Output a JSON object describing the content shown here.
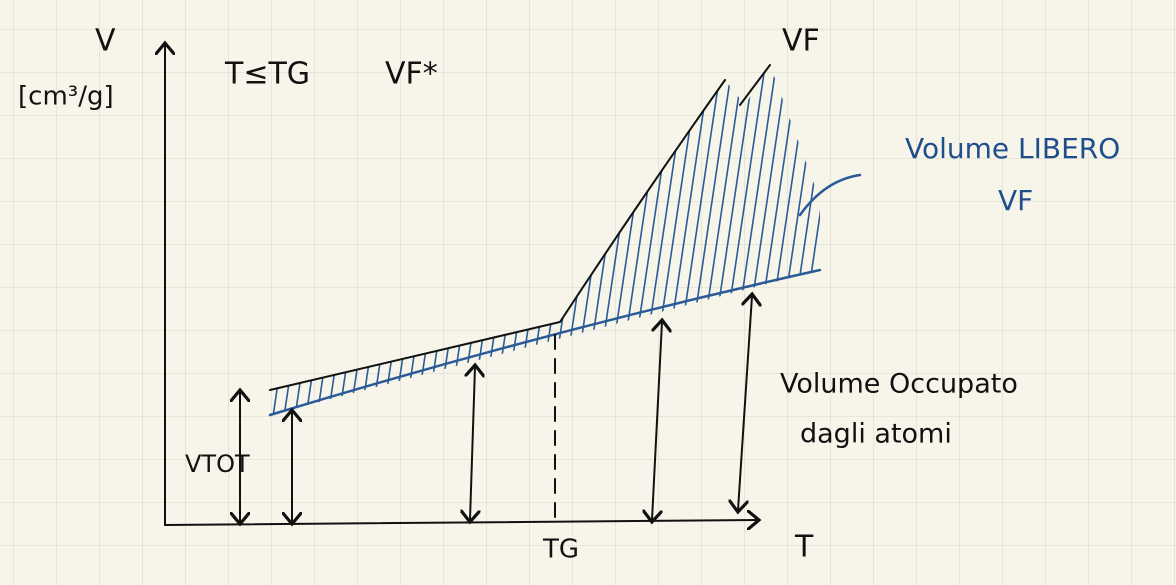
{
  "axes": {
    "y_label": "V",
    "y_unit": "[cm³/g]",
    "x_label": "T",
    "x_mark": "TG"
  },
  "labels": {
    "condition": "T≤TG",
    "free_volume_star": "VF*",
    "total_curve": "VF",
    "v_tot": "VTOT"
  },
  "annotations": {
    "free_volume_title": "Volume LIBERO",
    "free_volume_symbol": "VF",
    "occupied_line1": "Volume Occupato",
    "occupied_line2": "dagli atomi"
  }
}
